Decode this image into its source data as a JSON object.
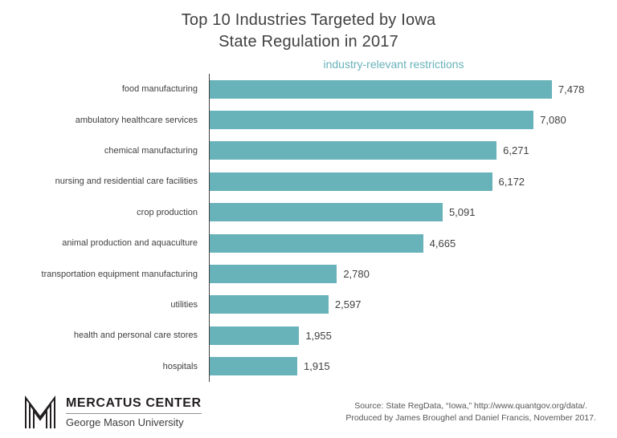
{
  "title": {
    "line1": "Top 10 Industries Targeted by Iowa",
    "line2": "State Regulation in 2017"
  },
  "subtitle": "industry-relevant restrictions",
  "chart_data": {
    "type": "bar",
    "orientation": "horizontal",
    "title": "Top 10 Industries Targeted by Iowa State Regulation in 2017",
    "subtitle": "industry-relevant restrictions",
    "xlabel": "",
    "ylabel": "",
    "xlim": [
      0,
      8000
    ],
    "grid": false,
    "legend": "none",
    "categories": [
      "food manufacturing",
      "ambulatory healthcare services",
      "chemical manufacturing",
      "nursing and residential care facilities",
      "crop production",
      "animal production and aquaculture",
      "transportation equipment manufacturing",
      "utilities",
      "health and personal care stores",
      "hospitals"
    ],
    "values": [
      7478,
      7080,
      6271,
      6172,
      5091,
      4665,
      2780,
      2597,
      1955,
      1915
    ],
    "value_labels": [
      "7,478",
      "7,080",
      "6,271",
      "6,172",
      "5,091",
      "4,665",
      "2,780",
      "2,597",
      "1,955",
      "1,915"
    ]
  },
  "footer": {
    "brand_line1": "MERCATUS CENTER",
    "brand_line2": "George Mason University",
    "source_line1": "Source: State RegData, “Iowa,” http://www.quantgov.org/data/.",
    "source_line2": "Produced by James Broughel and Daniel Francis, November 2017."
  },
  "colors": {
    "accent": "#68b2ba",
    "title_text": "#414042",
    "source_text": "#565658"
  }
}
